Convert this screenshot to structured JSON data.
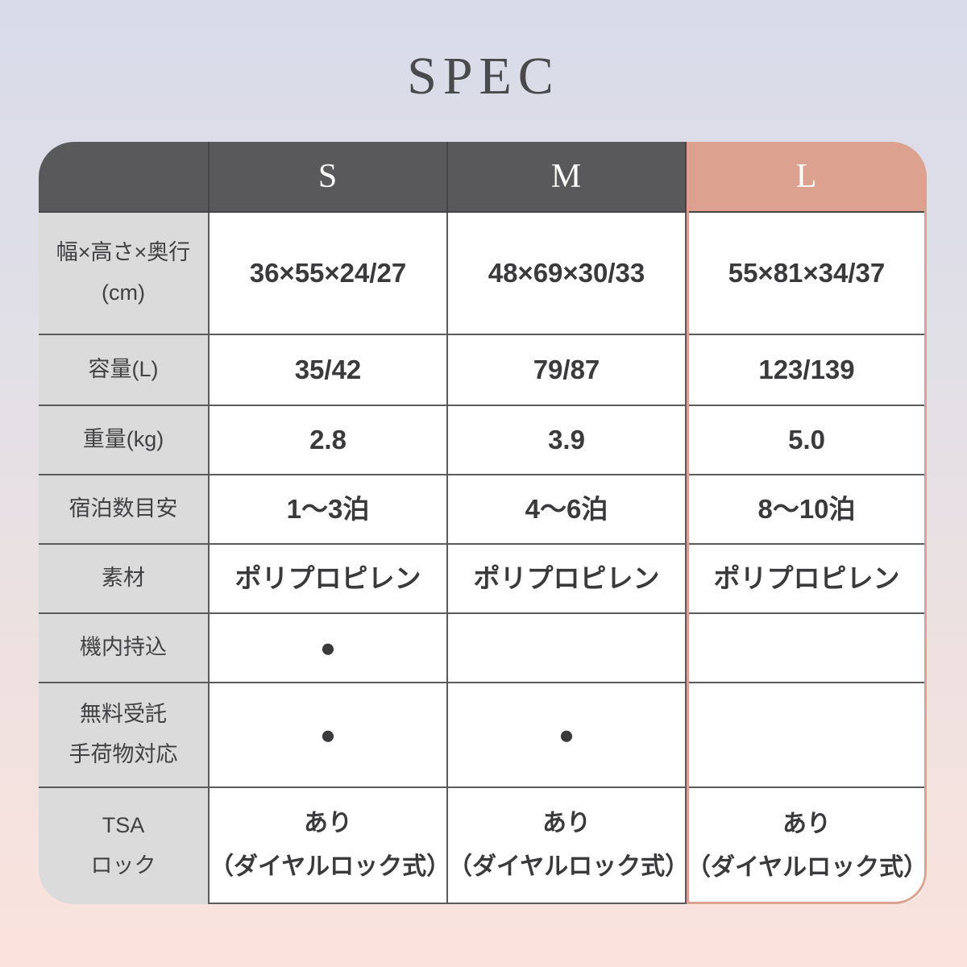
{
  "page": {
    "title": "SPEC"
  },
  "colors": {
    "bg_top": "#d8dbe9",
    "bg_bottom": "#fbe3dd",
    "accent": "#dda28f",
    "header_bg": "#59595b",
    "label_bg": "#dbdbdb",
    "grid": "#5b5b5d",
    "title_text": "#4a4a4c",
    "label_text": "#414143",
    "value_text": "#3a3a3c"
  },
  "table": {
    "columns": [
      "",
      "S",
      "M",
      "L"
    ],
    "highlight_column": "L",
    "check_mark": "●",
    "rows": [
      {
        "label": "幅×高さ×奥行\n(cm)",
        "values": [
          "36×55×24/27",
          "48×69×30/33",
          "55×81×34/37"
        ]
      },
      {
        "label": "容量(L)",
        "values": [
          "35/42",
          "79/87",
          "123/139"
        ]
      },
      {
        "label": "重量(kg)",
        "values": [
          "2.8",
          "3.9",
          "5.0"
        ]
      },
      {
        "label": "宿泊数目安",
        "values": [
          "1〜3泊",
          "4〜6泊",
          "8〜10泊"
        ]
      },
      {
        "label": "素材",
        "values": [
          "ポリプロピレン",
          "ポリプロピレン",
          "ポリプロピレン"
        ]
      },
      {
        "label": "機内持込",
        "values": [
          "●",
          "",
          ""
        ]
      },
      {
        "label": "無料受託\n手荷物対応",
        "values": [
          "●",
          "●",
          ""
        ]
      },
      {
        "label": "TSA\nロック",
        "values": [
          "あり\n（ダイヤルロック式）",
          "あり\n（ダイヤルロック式）",
          "あり\n（ダイヤルロック式）"
        ]
      }
    ]
  }
}
